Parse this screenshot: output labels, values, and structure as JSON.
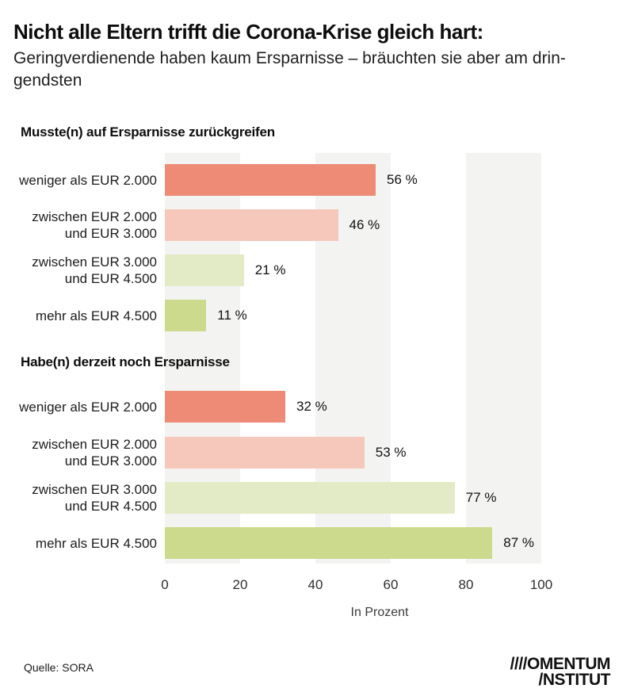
{
  "title": "Nicht alle Eltern trifft die Corona-Krise gleich hart:",
  "subtitle_line1": "Geringverdienende haben kaum Ersparnisse – bräuchten sie aber am drin-",
  "subtitle_line2": "gendsten",
  "source": "Quelle: SORA",
  "logo": {
    "line1": "////OMENTUM",
    "line2": "/NSTITUT"
  },
  "colors": {
    "coral": "#ED8B76",
    "pink": "#F6C8BC",
    "pale_green": "#E3EBC6",
    "green": "#CCDA8E",
    "stripe_gray": "#F3F3F1"
  },
  "chart_data": {
    "type": "bar",
    "orientation": "horizontal",
    "unit": "percent",
    "xlabel": "In Prozent",
    "xlim": [
      0,
      100
    ],
    "x_ticks": [
      0,
      20,
      40,
      60,
      80,
      100
    ],
    "tick_labels": [
      "0",
      "20",
      "40",
      "60",
      "80",
      "100"
    ],
    "grid": "alternating vertical bands at 0-20, 40-60, 80-100",
    "groups": [
      {
        "title": "Musste(n) auf Ersparnisse zurückgreifen",
        "bars": [
          {
            "line1": "weniger als EUR 2.000",
            "line2": "",
            "value": 56,
            "value_label": "56 %",
            "color": "#ED8B76"
          },
          {
            "line1": "zwischen EUR 2.000",
            "line2": "und EUR 3.000",
            "value": 46,
            "value_label": "46 %",
            "color": "#F6C8BC"
          },
          {
            "line1": "zwischen EUR 3.000",
            "line2": "und EUR 4.500",
            "value": 21,
            "value_label": "21 %",
            "color": "#E3EBC6"
          },
          {
            "line1": "mehr als EUR 4.500",
            "line2": "",
            "value": 11,
            "value_label": "11 %",
            "color": "#CCDA8E"
          }
        ]
      },
      {
        "title": "Habe(n) derzeit noch Ersparnisse",
        "bars": [
          {
            "line1": "weniger als EUR 2.000",
            "line2": "",
            "value": 32,
            "value_label": "32 %",
            "color": "#ED8B76"
          },
          {
            "line1": "zwischen EUR 2.000",
            "line2": "und EUR 3.000",
            "value": 53,
            "value_label": "53 %",
            "color": "#F6C8BC"
          },
          {
            "line1": "zwischen EUR 3.000",
            "line2": "und EUR 4.500",
            "value": 77,
            "value_label": "77 %",
            "color": "#E3EBC6"
          },
          {
            "line1": "mehr als EUR 4.500",
            "line2": "",
            "value": 87,
            "value_label": "87 %",
            "color": "#CCDA8E"
          }
        ]
      }
    ]
  }
}
